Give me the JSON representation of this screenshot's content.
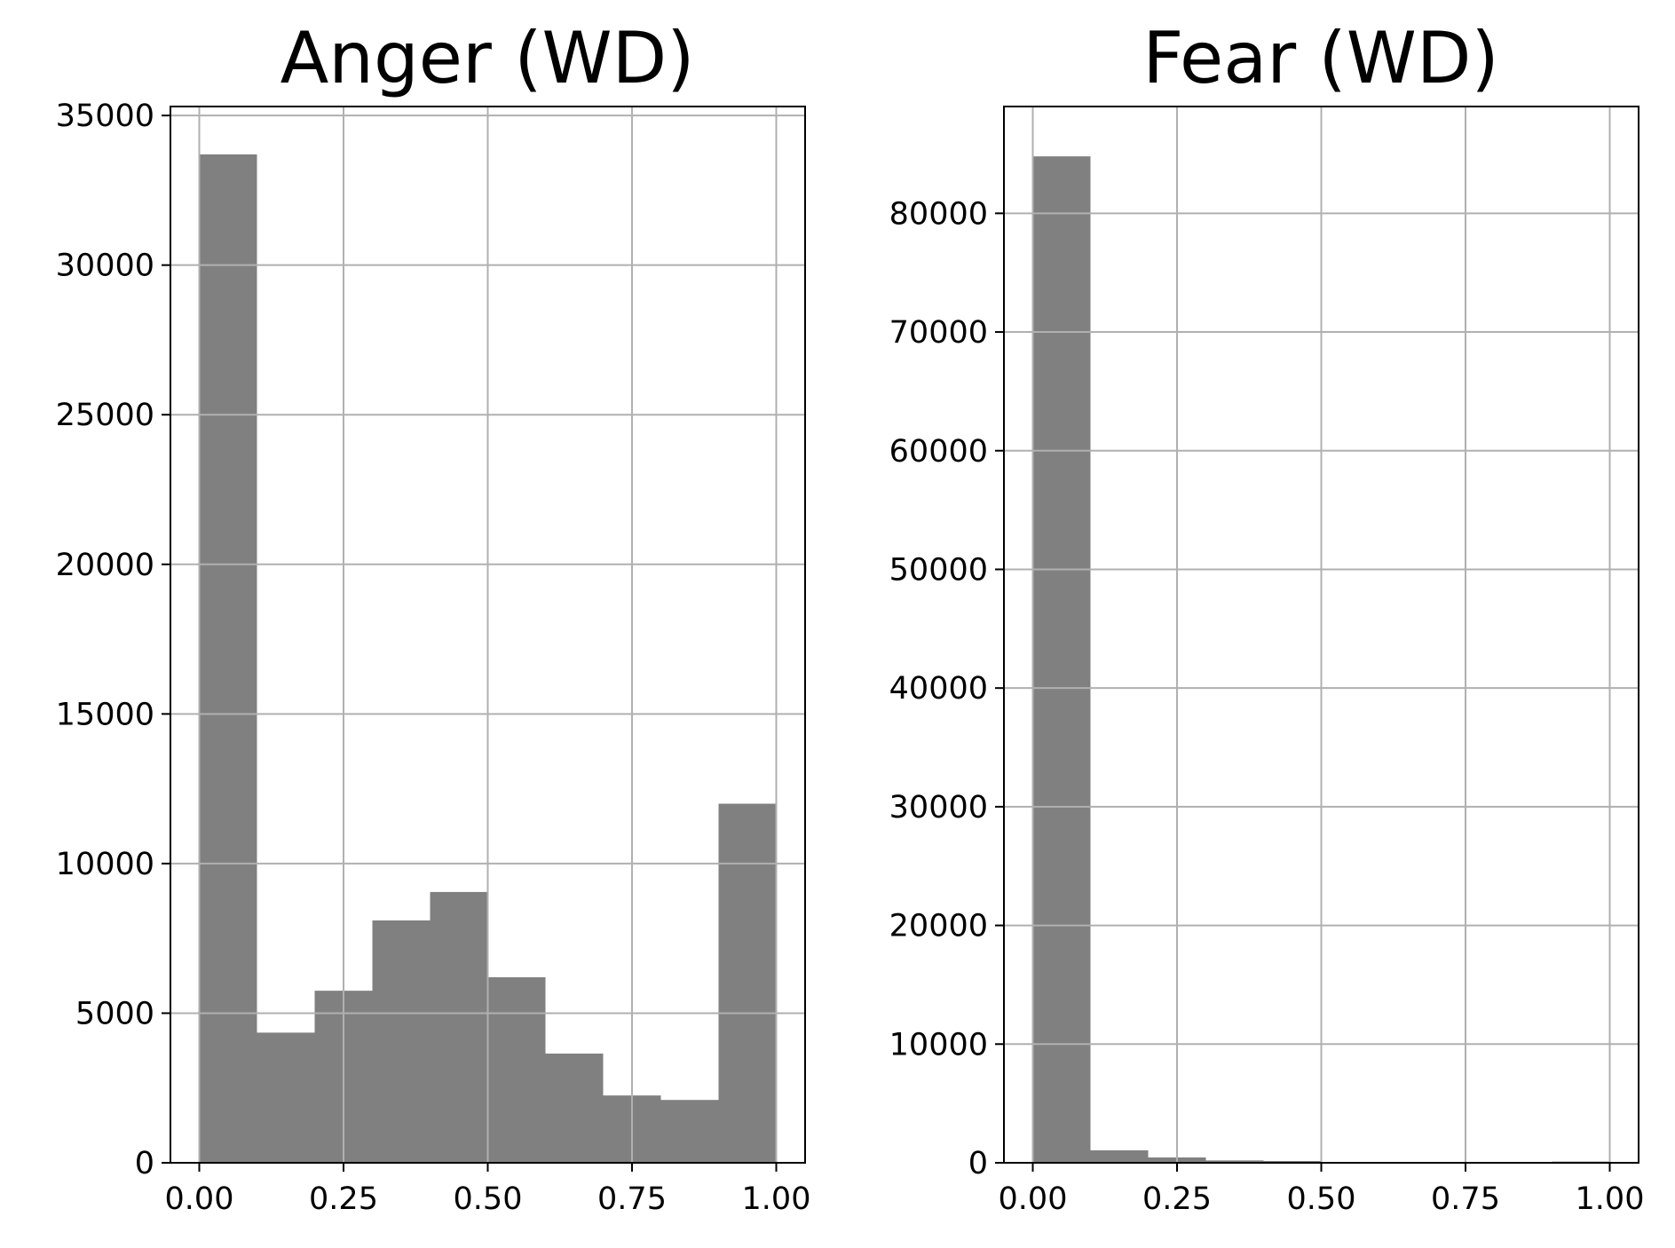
{
  "chart_data": [
    {
      "type": "bar",
      "title": "Anger (WD)",
      "xlabel": "",
      "ylabel": "",
      "bin_edges": [
        0.0,
        0.1,
        0.2,
        0.3,
        0.4,
        0.5,
        0.6,
        0.7,
        0.8,
        0.9,
        1.0
      ],
      "values": [
        33700,
        4350,
        5750,
        8100,
        9050,
        6200,
        3650,
        2250,
        2100,
        12000
      ],
      "xlim": [
        -0.05,
        1.05
      ],
      "ylim": [
        0,
        35300
      ],
      "x_ticks": [
        0.0,
        0.25,
        0.5,
        0.75,
        1.0
      ],
      "x_tick_labels": [
        "0.00",
        "0.25",
        "0.50",
        "0.75",
        "1.00"
      ],
      "y_ticks": [
        0,
        5000,
        10000,
        15000,
        20000,
        25000,
        30000,
        35000
      ],
      "y_tick_labels": [
        "0",
        "5000",
        "10000",
        "15000",
        "20000",
        "25000",
        "30000",
        "35000"
      ],
      "grid": true,
      "bar_color": "#808080"
    },
    {
      "type": "bar",
      "title": "Fear (WD)",
      "xlabel": "",
      "ylabel": "",
      "bin_edges": [
        0.0,
        0.1,
        0.2,
        0.3,
        0.4,
        0.5,
        0.6,
        0.7,
        0.8,
        0.9,
        1.0
      ],
      "values": [
        84800,
        1050,
        450,
        200,
        150,
        50,
        30,
        20,
        20,
        100
      ],
      "xlim": [
        -0.05,
        1.05
      ],
      "ylim": [
        0,
        89000
      ],
      "x_ticks": [
        0.0,
        0.25,
        0.5,
        0.75,
        1.0
      ],
      "x_tick_labels": [
        "0.00",
        "0.25",
        "0.50",
        "0.75",
        "1.00"
      ],
      "y_ticks": [
        0,
        10000,
        20000,
        30000,
        40000,
        50000,
        60000,
        70000,
        80000
      ],
      "y_tick_labels": [
        "0",
        "10000",
        "20000",
        "30000",
        "40000",
        "50000",
        "60000",
        "70000",
        "80000"
      ],
      "grid": true,
      "bar_color": "#808080"
    }
  ]
}
